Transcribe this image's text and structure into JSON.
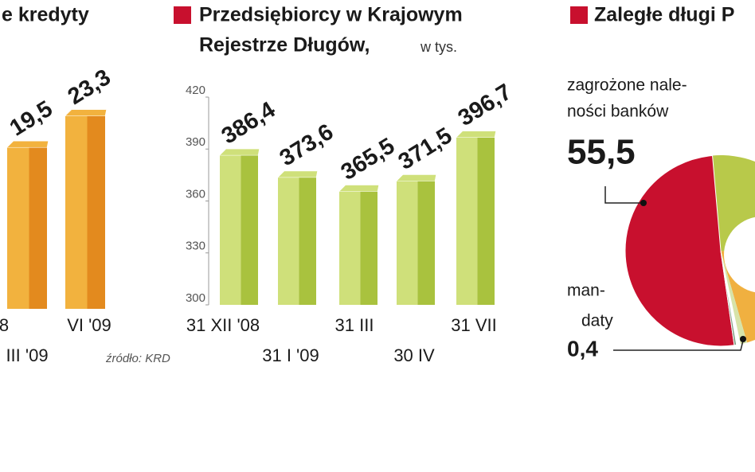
{
  "chart_data": [
    {
      "type": "bar",
      "title": "e kredyty",
      "categories": [
        "8",
        "III '09",
        "VI '09"
      ],
      "values": [
        null,
        19.5,
        23.3
      ],
      "value_labels": [
        null,
        "19,5",
        "23,3"
      ],
      "color": "#f2b23e",
      "side_color": "#e38a1e",
      "ylim": [
        0,
        30
      ]
    },
    {
      "type": "bar",
      "title": [
        "Przedsiębiorcy w Krajowym",
        "Rejestrze Długów,"
      ],
      "subtitle": "w tys.",
      "categories": [
        "31 XII '08",
        "31 I '09",
        "31 III",
        "30 IV",
        "31 VII"
      ],
      "values": [
        386.4,
        373.6,
        365.5,
        371.5,
        396.7
      ],
      "value_labels": [
        "386,4",
        "373,6",
        "365,5",
        "371,5",
        "396,7"
      ],
      "color": "#cfe07a",
      "side_color": "#a9c23e",
      "ylim": [
        300,
        420
      ],
      "yticks": [
        300,
        330,
        360,
        390,
        420
      ],
      "source": "źródło: KRD"
    },
    {
      "type": "pie",
      "title": "Zaległe długi P",
      "categories": [
        [
          "zagrożone nale-",
          "ności banków"
        ],
        [
          "man-",
          "daty"
        ]
      ],
      "values": [
        55.5,
        0.4
      ],
      "value_labels": [
        "55,5",
        "0,4"
      ],
      "colors": [
        "#c8102e",
        "#7e9c80"
      ]
    }
  ]
}
